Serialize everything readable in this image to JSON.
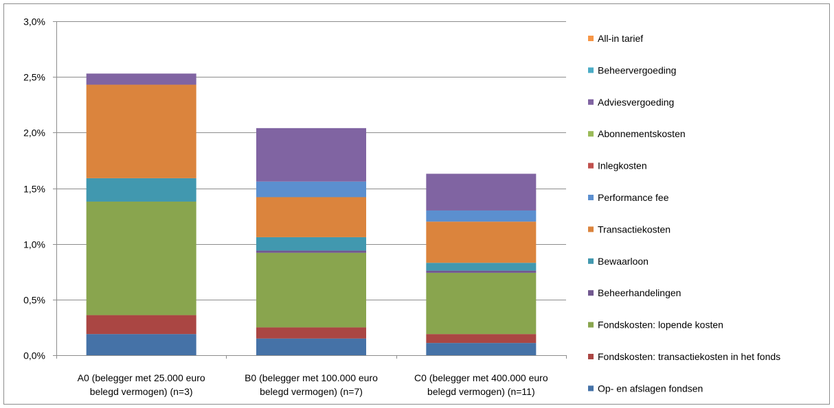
{
  "chart_data": {
    "type": "bar",
    "stacked": true,
    "grid": true,
    "legend_position": "right",
    "categories": [
      [
        "A0 (belegger met 25.000 euro",
        "belegd vermogen) (n=3)"
      ],
      [
        "B0 (belegger met 100.000 euro",
        "belegd vermogen) (n=7)"
      ],
      [
        "C0 (belegger met 400.000 euro",
        "belegd vermogen) (n=11)"
      ]
    ],
    "ylim": [
      0,
      3.0
    ],
    "yticks": [
      "0,0%",
      "0,5%",
      "1,0%",
      "1,5%",
      "2,0%",
      "2,5%",
      "3,0%"
    ],
    "series": [
      {
        "name": "Op- en afslagen fondsen",
        "color": "#4572a7",
        "values": [
          0.19,
          0.15,
          0.11
        ]
      },
      {
        "name": "Fondskosten: transactiekosten  in het fonds",
        "color": "#aa4643",
        "values": [
          0.17,
          0.1,
          0.08
        ]
      },
      {
        "name": "Fondskosten: lopende kosten",
        "color": "#89a54e",
        "values": [
          1.02,
          0.67,
          0.55
        ]
      },
      {
        "name": "Beheerhandelingen",
        "color": "#71588f",
        "values": [
          0.0,
          0.02,
          0.02
        ]
      },
      {
        "name": "Bewaarloon",
        "color": "#4198af",
        "values": [
          0.21,
          0.12,
          0.07
        ]
      },
      {
        "name": "Transactiekosten",
        "color": "#db843d",
        "values": [
          0.84,
          0.36,
          0.37
        ]
      },
      {
        "name": "Performance fee",
        "color": "#5b8fcf",
        "values": [
          0.0,
          0.14,
          0.1
        ]
      },
      {
        "name": "Inlegkosten",
        "color": "#c0504d",
        "values": [
          0.0,
          0.0,
          0.0
        ]
      },
      {
        "name": "Abonnementskosten",
        "color": "#9bbb59",
        "values": [
          0.0,
          0.0,
          0.0
        ]
      },
      {
        "name": "Adviesvergoeding",
        "color": "#8064a2",
        "values": [
          0.1,
          0.48,
          0.33
        ]
      },
      {
        "name": "Beheervergoeding",
        "color": "#4bacc6",
        "values": [
          0.0,
          0.0,
          0.0
        ]
      },
      {
        "name": "All-in tarief",
        "color": "#f79646",
        "values": [
          0.0,
          0.0,
          0.0
        ]
      }
    ]
  }
}
